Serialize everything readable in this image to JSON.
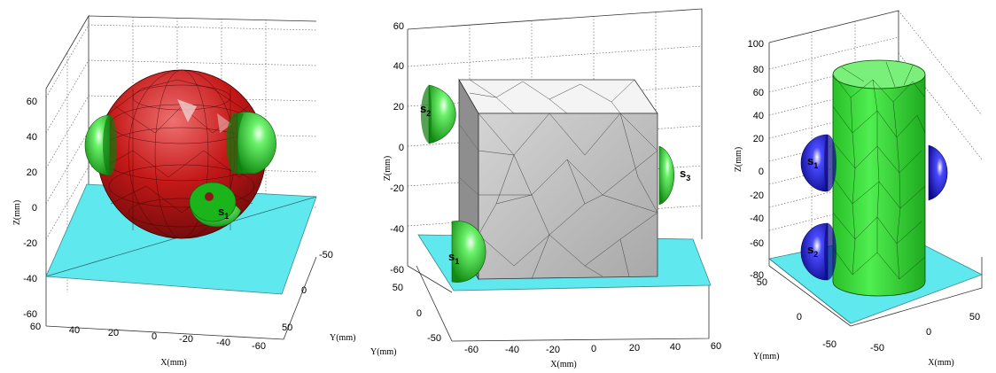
{
  "panels": [
    {
      "name": "sphere",
      "object_color": "#cc1f1f",
      "sensor_color": "#22cc22",
      "z_label": "Z(mm)",
      "x_label": "X(mm)",
      "y_label": "Y(mm)",
      "z_ticks": [
        "60",
        "40",
        "20",
        "0",
        "-20",
        "-40",
        "-60"
      ],
      "x_ticks": [
        "60",
        "40",
        "20",
        "0",
        "-20",
        "-40",
        "-60"
      ],
      "y_ticks": [
        "-50",
        "0",
        "50"
      ],
      "sensor_labels": [
        {
          "s": "s",
          "sub": "1"
        }
      ]
    },
    {
      "name": "cube",
      "object_color": "#bdbdbd",
      "sensor_color": "#22cc22",
      "z_label": "Z(mm)",
      "x_label": "X(mm)",
      "y_label": "Y(mm)",
      "z_ticks": [
        "60",
        "40",
        "20",
        "0",
        "-20",
        "-40",
        "-60"
      ],
      "x_ticks": [
        "-60",
        "-40",
        "-20",
        "0",
        "20",
        "40",
        "60"
      ],
      "y_ticks": [
        "50",
        "0",
        "-50"
      ],
      "sensor_labels": [
        {
          "s": "s",
          "sub": "2"
        },
        {
          "s": "s",
          "sub": "3"
        },
        {
          "s": "s",
          "sub": "1"
        }
      ]
    },
    {
      "name": "cylinder",
      "object_color": "#33dd33",
      "sensor_color": "#1a1add",
      "z_label": "Z(mm)",
      "x_label": "X(mm)",
      "y_label": "Y(mm)",
      "z_ticks": [
        "100",
        "80",
        "60",
        "40",
        "20",
        "0",
        "-20",
        "-40",
        "-60",
        "-80"
      ],
      "x_ticks": [
        "-50",
        "0",
        "50"
      ],
      "y_ticks": [
        "50",
        "0",
        "-50"
      ],
      "sensor_labels": [
        {
          "s": "s",
          "sub": "1"
        },
        {
          "s": "s",
          "sub": "2"
        }
      ]
    }
  ],
  "floor_color": "#5fe8ee"
}
